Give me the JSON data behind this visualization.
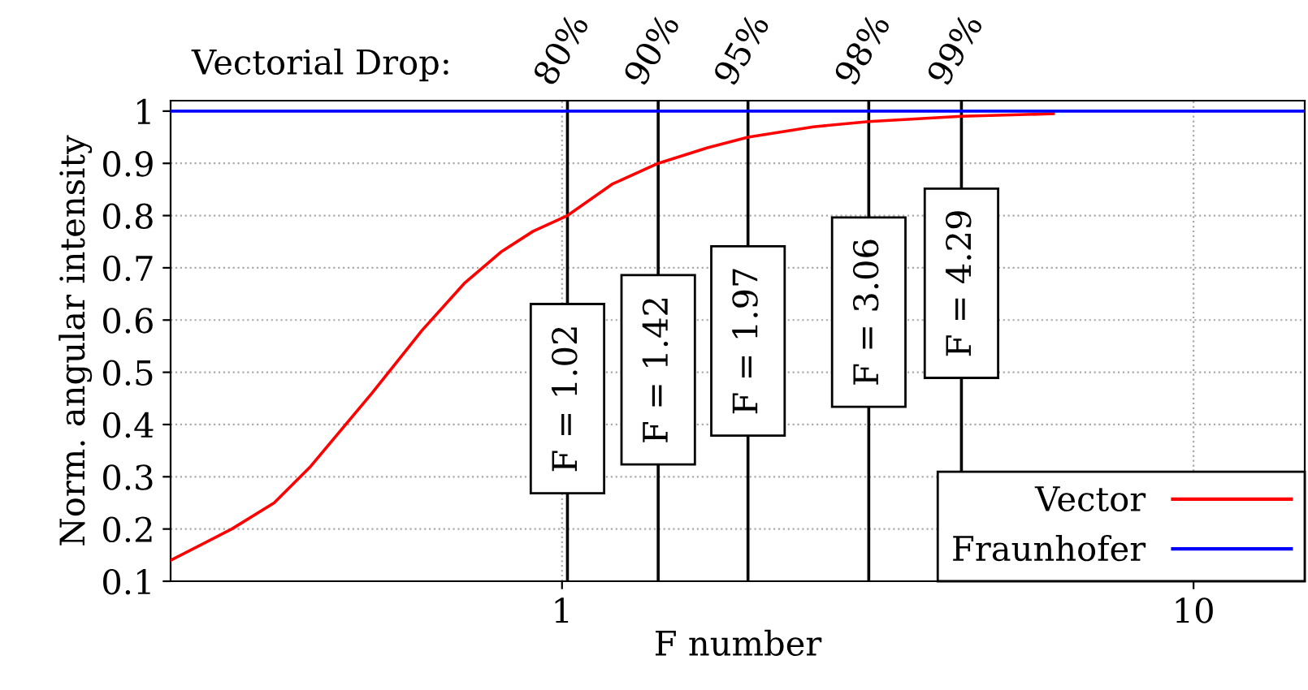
{
  "chart_data": {
    "type": "line",
    "xlabel": "F number",
    "ylabel": "Norm. angular intensity",
    "log": "x",
    "xlim": [
      0.24,
      15
    ],
    "xticks": [
      1,
      10
    ],
    "ylim": [
      0.1,
      1.02
    ],
    "yticks": [
      0.1,
      0.2,
      0.3,
      0.4,
      0.5,
      0.6,
      0.7,
      0.8,
      0.9,
      1
    ],
    "grid": true,
    "legend": "bottom right",
    "marker": "none",
    "line_style": "solid",
    "series": [
      {
        "name": "Vector",
        "color": "#ff0000",
        "x": [
          0.24,
          0.3,
          0.35,
          0.4,
          0.5,
          0.6,
          0.7,
          0.8,
          0.9,
          1.02,
          1.2,
          1.42,
          1.7,
          1.97,
          2.5,
          3.06,
          4.29,
          6
        ],
        "values": [
          0.14,
          0.2,
          0.25,
          0.32,
          0.46,
          0.58,
          0.67,
          0.73,
          0.77,
          0.8,
          0.86,
          0.9,
          0.93,
          0.95,
          0.97,
          0.98,
          0.99,
          0.995
        ]
      },
      {
        "name": "Fraunhofer",
        "color": "#0000ff",
        "x": [
          0.24,
          15
        ],
        "values": [
          1,
          1
        ]
      }
    ],
    "ref_lines": [
      {
        "axis": "x",
        "value": 1.02,
        "label": "F = 1.02",
        "color": "#000000"
      },
      {
        "axis": "x",
        "value": 1.42,
        "label": "F = 1.42",
        "color": "#000000"
      },
      {
        "axis": "x",
        "value": 1.97,
        "label": "F = 1.97",
        "color": "#000000"
      },
      {
        "axis": "x",
        "value": 3.06,
        "label": "F = 3.06",
        "color": "#000000"
      },
      {
        "axis": "x",
        "value": 4.29,
        "label": "F = 4.29",
        "color": "#000000"
      }
    ],
    "annotations": [
      "Vectorial Drop:",
      "80%",
      "90%",
      "95%",
      "98%",
      "99%"
    ]
  }
}
